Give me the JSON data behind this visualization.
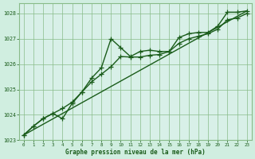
{
  "title": "Graphe pression niveau de la mer (hPa)",
  "background_color": "#d0eee0",
  "plot_bg_color": "#d8f0e8",
  "grid_color": "#88bb88",
  "line_color": "#1a5c1a",
  "xlim": [
    -0.5,
    23.5
  ],
  "ylim": [
    1023.0,
    1028.4
  ],
  "xticks": [
    0,
    1,
    2,
    3,
    4,
    5,
    6,
    7,
    8,
    9,
    10,
    11,
    12,
    13,
    14,
    15,
    16,
    17,
    18,
    19,
    20,
    21,
    22,
    23
  ],
  "yticks": [
    1023,
    1024,
    1025,
    1026,
    1027,
    1028
  ],
  "series1_x": [
    0,
    1,
    2,
    3,
    4,
    5,
    6,
    7,
    8,
    9,
    10,
    11,
    12,
    13,
    14,
    15,
    16,
    17,
    18,
    19,
    20,
    21,
    22,
    23
  ],
  "series1_y": [
    1023.2,
    1023.55,
    1023.85,
    1024.05,
    1023.85,
    1024.45,
    1024.9,
    1025.45,
    1025.85,
    1027.0,
    1026.65,
    1026.3,
    1026.5,
    1026.55,
    1026.5,
    1026.5,
    1027.05,
    1027.2,
    1027.25,
    1027.25,
    1027.5,
    1028.05,
    1028.05,
    1028.1
  ],
  "series2_x": [
    0,
    1,
    2,
    3,
    4,
    5,
    6,
    7,
    8,
    9,
    10,
    11,
    12,
    13,
    14,
    15,
    16,
    17,
    18,
    19,
    20,
    21,
    22,
    23
  ],
  "series2_y": [
    1023.2,
    1023.55,
    1023.85,
    1024.05,
    1024.25,
    1024.5,
    1024.9,
    1025.3,
    1025.6,
    1025.9,
    1026.3,
    1026.28,
    1026.28,
    1026.35,
    1026.38,
    1026.5,
    1026.82,
    1027.0,
    1027.1,
    1027.2,
    1027.38,
    1027.75,
    1027.82,
    1028.0
  ],
  "series3_x": [
    0,
    23
  ],
  "series3_y": [
    1023.2,
    1028.1
  ],
  "marker_size": 3.5,
  "line_width": 1.0
}
